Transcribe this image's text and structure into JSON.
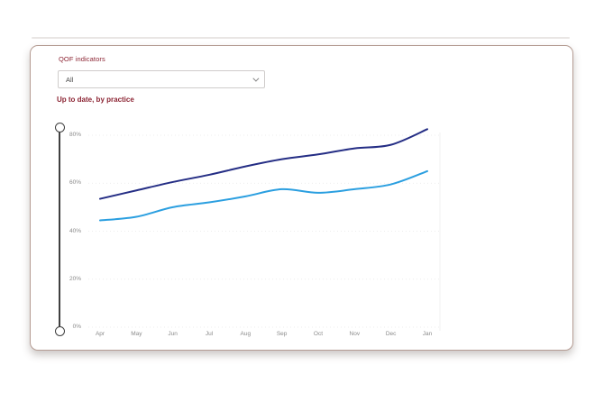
{
  "panel": {
    "filter_label": "QOF indicators",
    "dropdown_value": "All",
    "chart_title": "Up to date, by practice"
  },
  "icons": {
    "dropdown_chevron": "chevron-down"
  },
  "colors": {
    "accent_maroon": "#8b2332",
    "series_navy": "#252e85",
    "series_light_blue": "#2b9fe0",
    "axis_text": "#8a8a8a",
    "gridline": "#e7e7e7",
    "plot_right_edge": "#ededed",
    "slider": "#404040",
    "card_border": "#b59c93"
  },
  "chart_data": {
    "type": "line",
    "title": "Up to date, by practice",
    "xlabel": "",
    "ylabel": "",
    "categories": [
      "Apr",
      "May",
      "Jun",
      "Jul",
      "Aug",
      "Sep",
      "Oct",
      "Nov",
      "Dec",
      "Jan"
    ],
    "series": [
      {
        "name": "upper-line-dark-blue",
        "color": "#252e85",
        "values": [
          53.5,
          57,
          60.5,
          63.5,
          67,
          70,
          72,
          74.5,
          76,
          82.5
        ]
      },
      {
        "name": "lower-line-light-blue",
        "color": "#2b9fe0",
        "values": [
          44.5,
          46,
          50,
          52,
          54.5,
          57.5,
          56,
          57.5,
          59.5,
          65
        ]
      }
    ],
    "yticks": [
      "0%",
      "20%",
      "40%",
      "60%",
      "80%"
    ],
    "ytick_values": [
      0,
      20,
      40,
      60,
      80
    ],
    "ylim": [
      0,
      85
    ],
    "grid": "horizontal-dotted",
    "legend": "none"
  }
}
